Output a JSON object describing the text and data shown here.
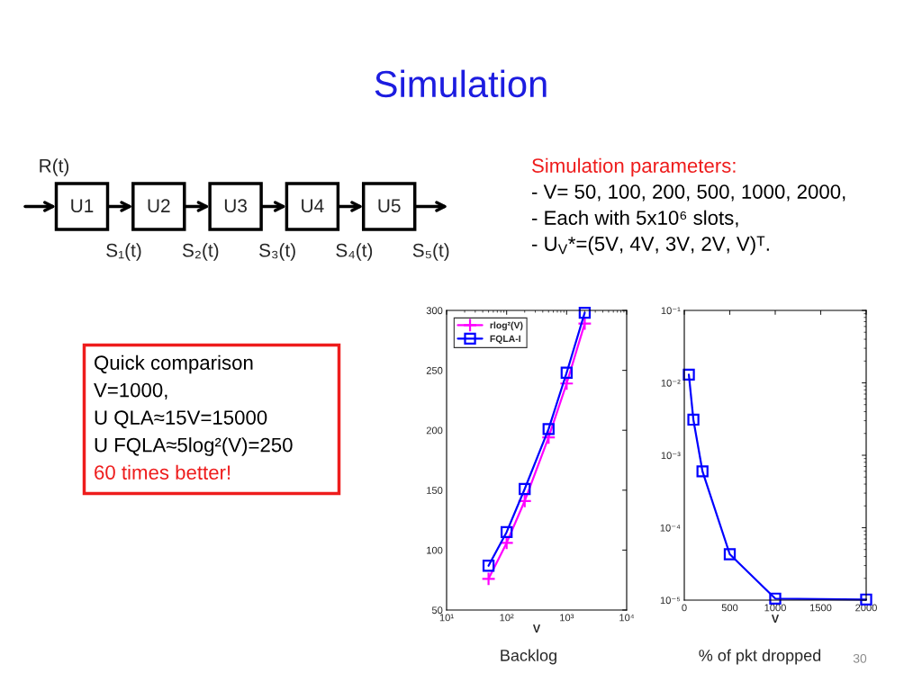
{
  "chart_data": [
    {
      "type": "other",
      "title": "Simulation"
    },
    {
      "type": "other",
      "categories": [
        "U1",
        "U2",
        "U3",
        "U4",
        "U5"
      ],
      "annotations": [
        "R(t)",
        "S₁(t)",
        "S₂(t)",
        "S₃(t)",
        "S₄(t)",
        "S₅(t)"
      ]
    },
    {
      "type": "other",
      "title": "Simulation parameters:",
      "annotations": [
        "- V= 50, 100, 200, 500, 1000, 2000,",
        "- Each with 5x10⁶ slots,",
        "- U$_{V}$*=(5V, 4V, 3V, 2V, V)ᵀ."
      ]
    },
    {
      "type": "other",
      "annotations": [
        "Quick comparison",
        "V=1000,",
        "U QLA≈15V=15000",
        "U FQLA≈5log²(V)=250",
        "60 times better!"
      ]
    },
    {
      "type": "line",
      "x": [
        50,
        100,
        200,
        500,
        1000,
        2000
      ],
      "xlabel": "V",
      "log": "x",
      "xlim": [
        10,
        10000
      ],
      "xticks": [
        {
          "value": 10,
          "label": "10¹"
        },
        {
          "value": 100,
          "label": "10²"
        },
        {
          "value": 1000,
          "label": "10³"
        },
        {
          "value": 10000,
          "label": "10⁴"
        }
      ],
      "ylim": [
        50,
        300
      ],
      "yticks": [
        50,
        100,
        150,
        200,
        250,
        300
      ],
      "legend": "top left",
      "series": [
        {
          "name": "rlog²(V)",
          "color": "#ff00ff",
          "marker": "cross",
          "values": [
            76,
            106,
            141,
            194,
            239,
            289
          ]
        },
        {
          "name": "FQLA-I",
          "color": "#0000ff",
          "marker": "square",
          "values": [
            87,
            115,
            151,
            201,
            248,
            298
          ]
        }
      ],
      "annotations": [
        "Backlog"
      ]
    },
    {
      "type": "line",
      "x": [
        50,
        100,
        200,
        500,
        1000,
        2000
      ],
      "xlabel": "V",
      "log": "y",
      "xlim": [
        0,
        2000
      ],
      "xticks": [
        0,
        500,
        1000,
        1500,
        2000
      ],
      "ylim": [
        1e-05,
        0.1
      ],
      "yticks": [
        {
          "value": 1e-05,
          "label": "10⁻⁵"
        },
        {
          "value": 0.0001,
          "label": "10⁻⁴"
        },
        {
          "value": 0.001,
          "label": "10⁻³"
        },
        {
          "value": 0.01,
          "label": "10⁻²"
        },
        {
          "value": 0.1,
          "label": "10⁻¹"
        }
      ],
      "series": [
        {
          "color": "#0000ff",
          "marker": "square",
          "values": [
            0.013,
            0.0031,
            0.0006,
            4.3e-05,
            1.05e-05,
            1.02e-05
          ]
        }
      ],
      "annotations": [
        "% of pkt dropped"
      ]
    },
    {
      "type": "other",
      "annotations": [
        "30"
      ]
    }
  ]
}
